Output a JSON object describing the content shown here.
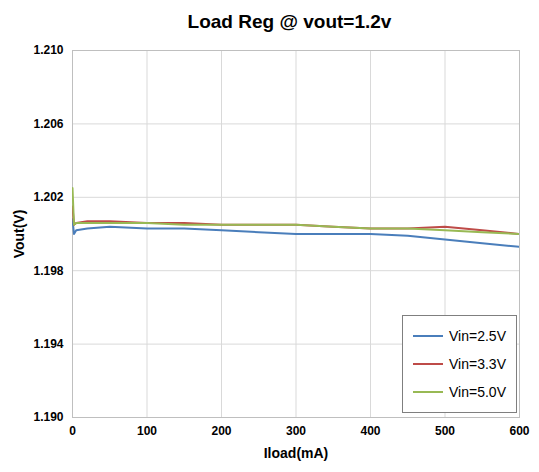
{
  "chart_data": {
    "type": "line",
    "title": "Load Reg @ vout=1.2v",
    "x_label": "Iload(mA)",
    "y_label": "Vout(V)",
    "x": [
      0,
      2,
      5,
      20,
      50,
      100,
      150,
      200,
      250,
      300,
      350,
      400,
      450,
      500,
      550,
      600
    ],
    "series": [
      {
        "name": "Vin=2.5V",
        "color": "#4a7ebb",
        "values": [
          1.2008,
          1.2,
          1.2002,
          1.2003,
          1.2004,
          1.2003,
          1.2003,
          1.2002,
          1.2001,
          1.2,
          1.2,
          1.2,
          1.1999,
          1.1997,
          1.1995,
          1.1993
        ]
      },
      {
        "name": "Vin=3.3V",
        "color": "#be4b48",
        "values": [
          1.2015,
          1.2005,
          1.2006,
          1.2007,
          1.2007,
          1.2006,
          1.2006,
          1.2005,
          1.2005,
          1.2005,
          1.2004,
          1.2003,
          1.2003,
          1.2004,
          1.2002,
          1.2
        ]
      },
      {
        "name": "Vin=5.0V",
        "color": "#98b954",
        "values": [
          1.2025,
          1.2005,
          1.2006,
          1.2006,
          1.2006,
          1.2006,
          1.2005,
          1.2005,
          1.2005,
          1.2005,
          1.2004,
          1.2003,
          1.2003,
          1.2002,
          1.2001,
          1.2
        ]
      }
    ],
    "xlim": [
      0,
      600
    ],
    "xticks": [
      0,
      100,
      200,
      300,
      400,
      500,
      600
    ],
    "ylim": [
      1.19,
      1.21
    ],
    "yticks": [
      {
        "value": 1.19,
        "label": "1.190"
      },
      1.194,
      1.198,
      1.202,
      1.206,
      {
        "value": 1.21,
        "label": "1.210"
      }
    ],
    "grid": true,
    "legend": "lower right"
  }
}
